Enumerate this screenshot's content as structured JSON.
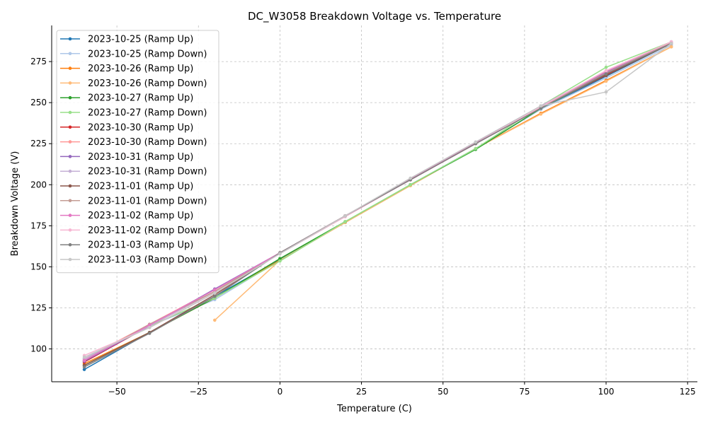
{
  "chart_data": {
    "type": "line",
    "title": "DC_W3058 Breakdown Voltage vs. Temperature",
    "xlabel": "Temperature (C)",
    "ylabel": "Breakdown Voltage (V)",
    "xlim": [
      -70,
      128
    ],
    "ylim": [
      80,
      297
    ],
    "xticks": [
      -50,
      -25,
      0,
      25,
      50,
      75,
      100,
      125
    ],
    "yticks": [
      100,
      125,
      150,
      175,
      200,
      225,
      250,
      275
    ],
    "grid": true,
    "legend_position": "top-left",
    "series": [
      {
        "name": "2023-10-25 (Ramp Up)",
        "color": "#1f77b4",
        "x": [
          -60,
          -40,
          -20,
          0,
          20,
          40,
          60,
          80,
          100,
          120
        ],
        "y": [
          87.5,
          110,
          132,
          154.5,
          177,
          200,
          222,
          246,
          266,
          286
        ]
      },
      {
        "name": "2023-10-25 (Ramp Down)",
        "color": "#aec7e8",
        "x": [
          -60,
          -40,
          -20,
          0,
          20,
          40,
          60,
          80,
          100,
          120
        ],
        "y": [
          93,
          114,
          130,
          154,
          177,
          200,
          222,
          246,
          265,
          285
        ]
      },
      {
        "name": "2023-10-26 (Ramp Up)",
        "color": "#ff7f0e",
        "x": [
          -60,
          -40,
          -20,
          0,
          20,
          40,
          60,
          80,
          100,
          120
        ],
        "y": [
          91,
          110,
          131,
          154,
          177,
          199.5,
          222,
          243.5,
          263.5,
          284
        ]
      },
      {
        "name": "2023-10-26 (Ramp Down)",
        "color": "#ffbb78",
        "x": [
          -20,
          0,
          20,
          40,
          60,
          80,
          100,
          120
        ],
        "y": [
          117.5,
          154,
          177,
          199.5,
          222,
          243,
          263,
          284
        ]
      },
      {
        "name": "2023-10-27 (Ramp Up)",
        "color": "#2ca02c",
        "x": [
          -60,
          -40,
          -20,
          0,
          20,
          40,
          60,
          80,
          100,
          120
        ],
        "y": [
          90,
          110,
          131,
          155,
          177.5,
          200,
          221.5,
          246.5,
          267,
          286.5
        ]
      },
      {
        "name": "2023-10-27 (Ramp Down)",
        "color": "#98df8a",
        "x": [
          -60,
          -40,
          -20,
          0,
          20,
          40,
          60,
          80,
          100,
          120
        ],
        "y": [
          94,
          114,
          131,
          153.5,
          177.5,
          200,
          222,
          248,
          271.5,
          287
        ]
      },
      {
        "name": "2023-10-30 (Ramp Up)",
        "color": "#d62728",
        "x": [
          -60,
          -40,
          -20,
          0,
          20,
          40,
          60,
          80,
          100,
          120
        ],
        "y": [
          92,
          114,
          135,
          158.5,
          181,
          203,
          225,
          247,
          267,
          286
        ]
      },
      {
        "name": "2023-10-30 (Ramp Down)",
        "color": "#ff9896",
        "x": [
          -60,
          -40,
          -20,
          0,
          20,
          40,
          60,
          80,
          100,
          120
        ],
        "y": [
          94,
          115,
          136,
          158.5,
          181,
          203.5,
          225.5,
          248,
          268,
          286.5
        ]
      },
      {
        "name": "2023-10-31 (Ramp Up)",
        "color": "#9467bd",
        "x": [
          -60,
          -40,
          -20,
          0,
          20,
          40,
          60,
          80,
          100,
          120
        ],
        "y": [
          92.5,
          114,
          136.5,
          158.5,
          181,
          203.5,
          225.5,
          247,
          268.5,
          286.5
        ]
      },
      {
        "name": "2023-10-31 (Ramp Down)",
        "color": "#c5b0d5",
        "x": [
          -60,
          -40,
          -20,
          0,
          20,
          40,
          60,
          80,
          100,
          120
        ],
        "y": [
          94,
          114,
          135,
          158.5,
          181,
          203.5,
          226,
          248,
          269,
          287
        ]
      },
      {
        "name": "2023-11-01 (Ramp Up)",
        "color": "#8c564b",
        "x": [
          -60,
          -40,
          -20,
          0,
          20,
          40,
          60,
          80,
          100,
          120
        ],
        "y": [
          90,
          110,
          133,
          158.5,
          181,
          203,
          225,
          247,
          266.5,
          286
        ]
      },
      {
        "name": "2023-11-01 (Ramp Down)",
        "color": "#c49c94",
        "x": [
          -60,
          -40,
          -20,
          0,
          20,
          40,
          60,
          80,
          100,
          120
        ],
        "y": [
          93,
          115,
          135,
          158.5,
          181,
          203.5,
          225.5,
          247,
          268,
          286.5
        ]
      },
      {
        "name": "2023-11-02 (Ramp Up)",
        "color": "#e377c2",
        "x": [
          -60,
          -40,
          -20,
          0,
          20,
          40,
          60,
          80,
          100,
          120
        ],
        "y": [
          93,
          114.5,
          136,
          158.5,
          181,
          203.5,
          225.5,
          247.5,
          269,
          287
        ]
      },
      {
        "name": "2023-11-02 (Ramp Down)",
        "color": "#f7b6d2",
        "x": [
          -60,
          -40,
          -20,
          0,
          20,
          40,
          60,
          80,
          100,
          120
        ],
        "y": [
          96,
          113,
          134,
          158,
          180.5,
          203,
          225,
          247.5,
          269.5,
          287
        ]
      },
      {
        "name": "2023-11-03 (Ramp Up)",
        "color": "#7f7f7f",
        "x": [
          -60,
          -40,
          -20,
          0,
          20,
          40,
          60,
          80,
          100,
          120
        ],
        "y": [
          89,
          109.5,
          132,
          158.5,
          181,
          203,
          225,
          246.5,
          267.5,
          286
        ]
      },
      {
        "name": "2023-11-03 (Ramp Down)",
        "color": "#c7c7c7",
        "x": [
          -60,
          -40,
          -20,
          0,
          20,
          40,
          60,
          80,
          100,
          120
        ],
        "y": [
          95,
          113,
          134,
          158,
          181,
          204,
          226,
          248,
          256.5,
          286
        ]
      }
    ]
  }
}
